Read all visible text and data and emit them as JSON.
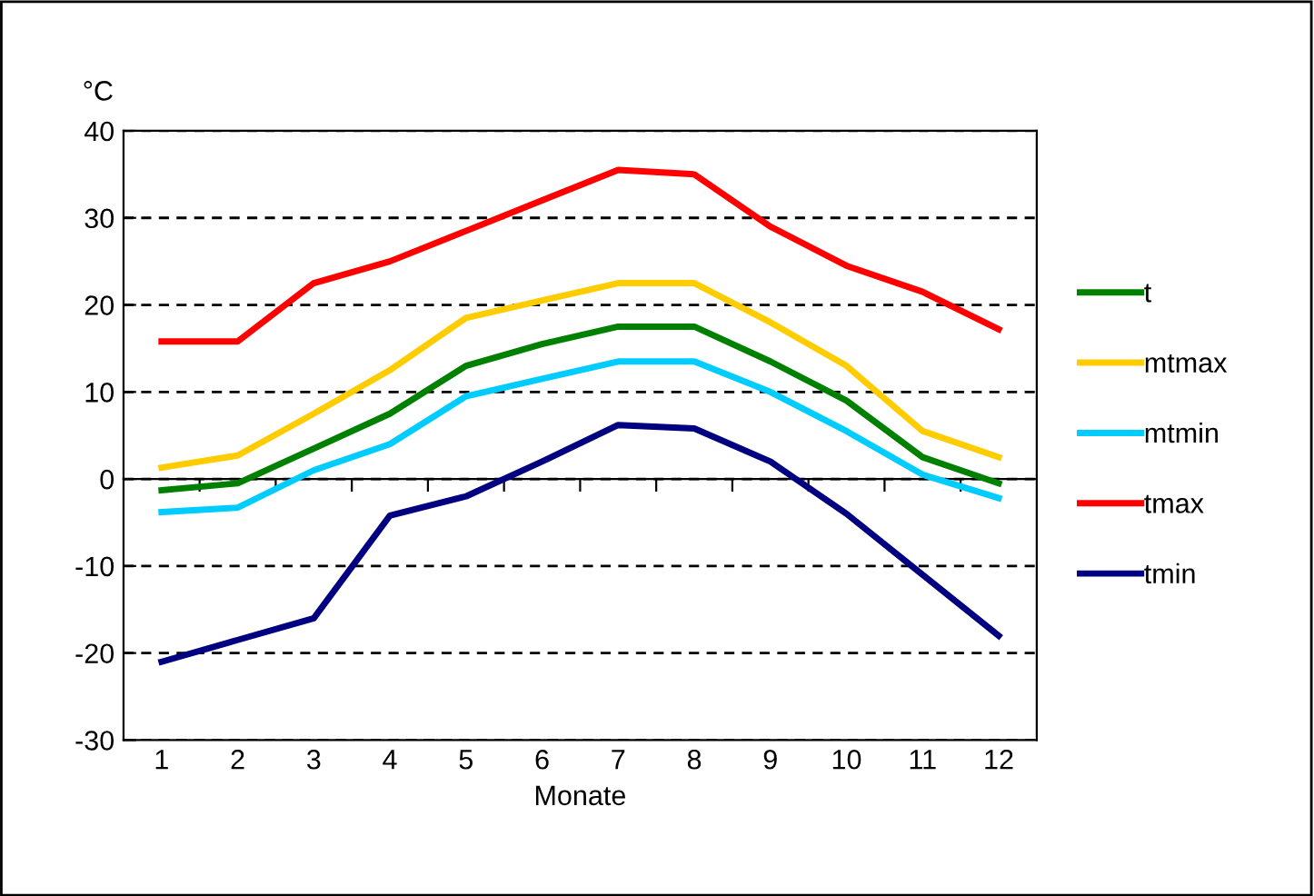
{
  "chart_data": {
    "type": "line",
    "ylabel": "°C",
    "xlabel": "Monate",
    "categories": [
      "1",
      "2",
      "3",
      "4",
      "5",
      "6",
      "7",
      "8",
      "9",
      "10",
      "11",
      "12"
    ],
    "ylim": [
      -30,
      40
    ],
    "yticks": [
      -30,
      -20,
      -10,
      0,
      10,
      20,
      30,
      40
    ],
    "grid": "y",
    "legend": "right",
    "marker": "none",
    "line_style": "solid",
    "series": [
      {
        "name": "t",
        "color": "#008000",
        "values": [
          -1.3,
          -0.5,
          3.5,
          7.5,
          13,
          15.5,
          17.5,
          17.5,
          13.5,
          9,
          2.5,
          -0.5
        ]
      },
      {
        "name": "mtmax",
        "color": "#ffcc00",
        "values": [
          1.3,
          2.7,
          7.5,
          12.5,
          18.5,
          20.5,
          22.5,
          22.5,
          18,
          13,
          5.5,
          2.5
        ]
      },
      {
        "name": "mtmin",
        "color": "#00ccff",
        "values": [
          -3.8,
          -3.3,
          1,
          4,
          9.5,
          11.5,
          13.5,
          13.5,
          10,
          5.5,
          0.5,
          -2.2
        ]
      },
      {
        "name": "tmax",
        "color": "#ff0000",
        "values": [
          15.8,
          15.8,
          22.5,
          25,
          28.5,
          32,
          35.5,
          35,
          29,
          24.5,
          21.5,
          17.2
        ]
      },
      {
        "name": "tmin",
        "color": "#000080",
        "values": [
          -21,
          -18.5,
          -16,
          -4.2,
          -2,
          2,
          6.2,
          5.8,
          2,
          -4,
          -11,
          -18
        ]
      }
    ]
  }
}
